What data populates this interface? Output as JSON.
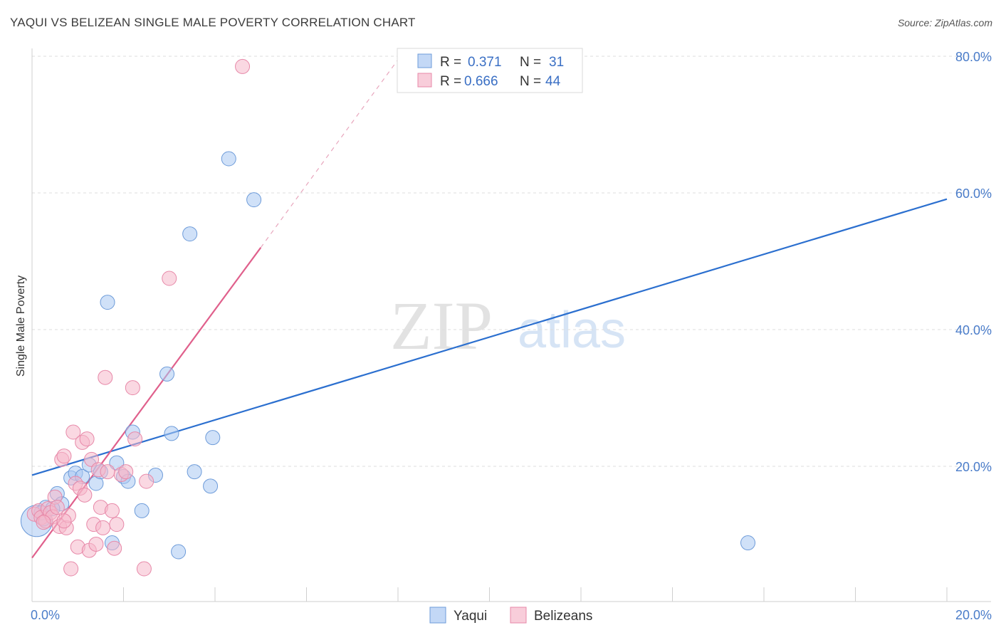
{
  "title": "YAQUI VS BELIZEAN SINGLE MALE POVERTY CORRELATION CHART",
  "source": "Source: ZipAtlas.com",
  "watermark": {
    "zip": "ZIP",
    "atlas": "atlas"
  },
  "chart_data": {
    "type": "scatter",
    "title": "YAQUI VS BELIZEAN SINGLE MALE POVERTY CORRELATION CHART",
    "xlabel": "",
    "ylabel": "Single Male Poverty",
    "xlim": [
      0,
      20
    ],
    "ylim": [
      0,
      82
    ],
    "x_ticks": [
      {
        "value": 0,
        "label": "0.0%"
      },
      {
        "value": 20,
        "label": "20.0%"
      }
    ],
    "y_ticks": [
      {
        "value": 20,
        "label": "20.0%"
      },
      {
        "value": 40,
        "label": "40.0%"
      },
      {
        "value": 60,
        "label": "60.0%"
      },
      {
        "value": 80,
        "label": "80.0%"
      }
    ],
    "legend_position": "top-center",
    "series": [
      {
        "name": "Yaqui",
        "color": "#a9c8f2",
        "stroke": "#6d9bd9",
        "line_color": "#2b6fcf",
        "r": "0.371",
        "n": "31",
        "trend": {
          "x0": 0,
          "y0": 18.7,
          "x1": 20,
          "y1": 59.1
        },
        "points": [
          [
            0.1,
            12.0,
            22
          ],
          [
            0.25,
            12.3,
            10
          ],
          [
            0.3,
            14.0,
            10
          ],
          [
            0.55,
            16.0,
            10
          ],
          [
            0.65,
            14.5,
            10
          ],
          [
            0.85,
            18.3,
            10
          ],
          [
            0.95,
            19.0,
            10
          ],
          [
            1.1,
            18.5,
            10
          ],
          [
            1.4,
            17.5,
            10
          ],
          [
            1.25,
            20.2,
            10
          ],
          [
            1.5,
            19.2,
            10
          ],
          [
            1.65,
            44.0,
            10
          ],
          [
            1.75,
            8.8,
            10
          ],
          [
            1.85,
            20.5,
            10
          ],
          [
            2.0,
            18.5,
            10
          ],
          [
            2.1,
            17.8,
            10
          ],
          [
            2.2,
            25.0,
            10
          ],
          [
            2.4,
            13.5,
            10
          ],
          [
            2.7,
            18.7,
            10
          ],
          [
            2.95,
            33.5,
            10
          ],
          [
            3.05,
            24.8,
            10
          ],
          [
            3.2,
            7.5,
            10
          ],
          [
            3.45,
            54.0,
            10
          ],
          [
            3.55,
            19.2,
            10
          ],
          [
            3.9,
            17.1,
            10
          ],
          [
            3.95,
            24.2,
            10
          ],
          [
            4.3,
            65.0,
            10
          ],
          [
            4.85,
            59.0,
            10
          ],
          [
            15.65,
            8.8,
            10
          ],
          [
            0.2,
            13.2,
            10
          ],
          [
            0.45,
            13.8,
            10
          ]
        ]
      },
      {
        "name": "Belizeans",
        "color": "#f5b8cb",
        "stroke": "#e788a8",
        "line_color": "#e0608c",
        "r": "0.666",
        "n": "44",
        "trend": {
          "x0": 0,
          "y0": 6.6,
          "x1": 5.0,
          "y1": 52.0
        },
        "trend_dashed": {
          "x0": 5.0,
          "y0": 52.0,
          "x1": 8.0,
          "y1": 79.5
        },
        "points": [
          [
            0.05,
            13.0,
            10
          ],
          [
            0.15,
            13.5,
            10
          ],
          [
            0.2,
            12.5,
            10
          ],
          [
            0.3,
            12.0,
            10
          ],
          [
            0.35,
            13.8,
            10
          ],
          [
            0.4,
            13.2,
            10
          ],
          [
            0.45,
            12.6,
            10
          ],
          [
            0.5,
            15.5,
            10
          ],
          [
            0.55,
            14.0,
            10
          ],
          [
            0.6,
            11.2,
            10
          ],
          [
            0.65,
            21.0,
            10
          ],
          [
            0.7,
            21.5,
            10
          ],
          [
            0.75,
            11.0,
            10
          ],
          [
            0.8,
            12.8,
            10
          ],
          [
            0.85,
            5.0,
            10
          ],
          [
            0.9,
            25.0,
            10
          ],
          [
            0.95,
            17.5,
            10
          ],
          [
            1.0,
            8.2,
            10
          ],
          [
            1.05,
            16.8,
            10
          ],
          [
            1.1,
            23.5,
            10
          ],
          [
            1.15,
            15.8,
            10
          ],
          [
            1.2,
            24.0,
            10
          ],
          [
            1.25,
            7.7,
            10
          ],
          [
            1.3,
            21.0,
            10
          ],
          [
            1.35,
            11.5,
            10
          ],
          [
            1.4,
            8.6,
            10
          ],
          [
            1.45,
            19.5,
            10
          ],
          [
            1.5,
            14.0,
            10
          ],
          [
            1.55,
            11.0,
            10
          ],
          [
            1.6,
            33.0,
            10
          ],
          [
            1.65,
            19.2,
            10
          ],
          [
            1.75,
            13.5,
            10
          ],
          [
            1.8,
            8.0,
            10
          ],
          [
            1.85,
            11.5,
            10
          ],
          [
            1.95,
            18.8,
            10
          ],
          [
            2.05,
            19.2,
            10
          ],
          [
            2.2,
            31.5,
            10
          ],
          [
            2.25,
            24.0,
            10
          ],
          [
            2.45,
            5.0,
            10
          ],
          [
            2.5,
            17.8,
            10
          ],
          [
            3.0,
            47.5,
            10
          ],
          [
            4.6,
            78.5,
            10
          ],
          [
            0.25,
            11.8,
            10
          ],
          [
            0.7,
            12.0,
            10
          ]
        ]
      }
    ]
  }
}
